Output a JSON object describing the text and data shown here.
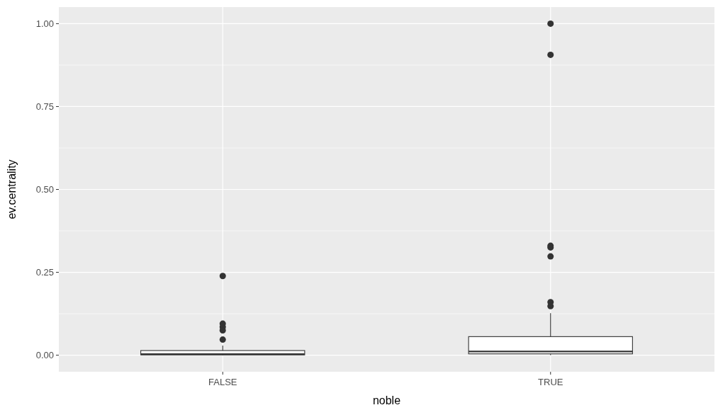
{
  "chart_data": {
    "type": "box",
    "xlabel": "noble",
    "ylabel": "ev.centrality",
    "categories": [
      "FALSE",
      "TRUE"
    ],
    "boxes": [
      {
        "low": 0,
        "q1": 0.001,
        "median": 0.003,
        "q3": 0.014,
        "high": 0.029,
        "outliers": [
          0.239,
          0.095,
          0.085,
          0.075,
          0.047
        ]
      },
      {
        "low": 0,
        "q1": 0.004,
        "median": 0.011,
        "q3": 0.056,
        "high": 0.127,
        "outliers": [
          1.0,
          0.906,
          0.33,
          0.325,
          0.298,
          0.16,
          0.148
        ]
      }
    ],
    "color": "#ffffff",
    "ylim": [
      -0.05,
      1.05
    ],
    "yticks": [
      {
        "value": 0,
        "label": "0.00"
      },
      {
        "value": 0.25,
        "label": "0.25"
      },
      {
        "value": 0.5,
        "label": "0.50"
      },
      {
        "value": 0.75,
        "label": "0.75"
      },
      {
        "value": 1,
        "label": "1.00"
      }
    ],
    "grid": true
  }
}
